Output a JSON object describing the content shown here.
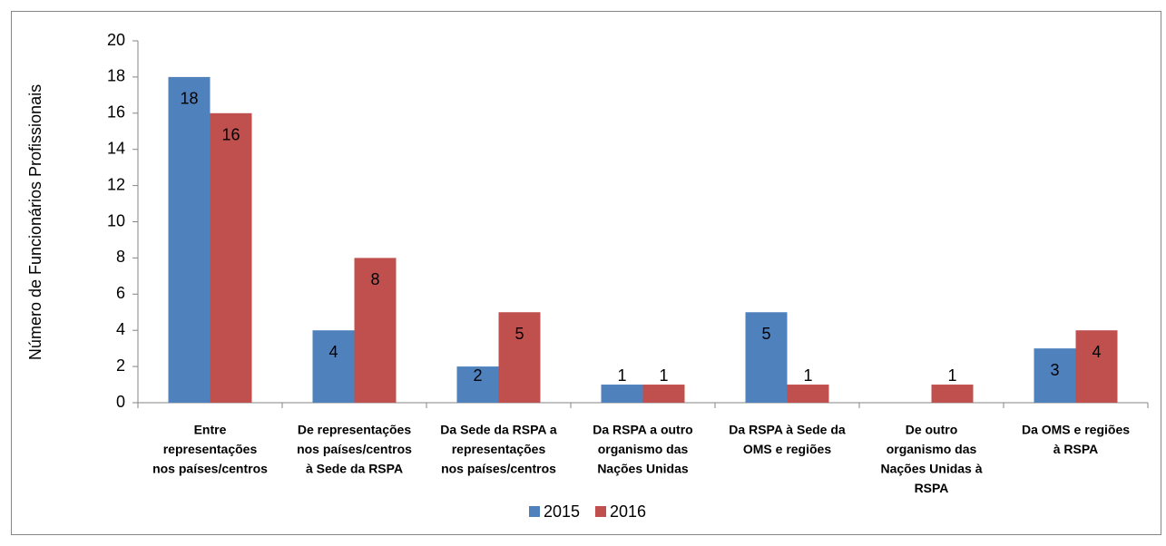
{
  "chart_data": {
    "type": "bar",
    "ylabel": "Número de Funcionários Profissionais",
    "categories": [
      [
        "Entre",
        "representações",
        "nos países/centros"
      ],
      [
        "De representações",
        "nos países/centros",
        "à Sede da RSPA"
      ],
      [
        "Da Sede da RSPA a",
        "representações",
        "nos países/centros"
      ],
      [
        "Da RSPA a outro",
        "organismo das",
        "Nações Unidas"
      ],
      [
        "Da RSPA à Sede da",
        "OMS e regiões"
      ],
      [
        "De outro",
        "organismo das",
        "Nações Unidas à",
        "RSPA"
      ],
      [
        "Da OMS e regiões",
        "à RSPA"
      ]
    ],
    "series": [
      {
        "name": "2015",
        "color": "#4f81bd",
        "values": [
          18,
          4,
          2,
          1,
          5,
          null,
          3
        ]
      },
      {
        "name": "2016",
        "color": "#c0504d",
        "values": [
          16,
          8,
          5,
          1,
          1,
          1,
          4
        ]
      }
    ],
    "ylim": [
      0,
      20
    ],
    "yticks": [
      0,
      2,
      4,
      6,
      8,
      10,
      12,
      14,
      16,
      18,
      20
    ],
    "grid": false,
    "legend": "bottom"
  }
}
